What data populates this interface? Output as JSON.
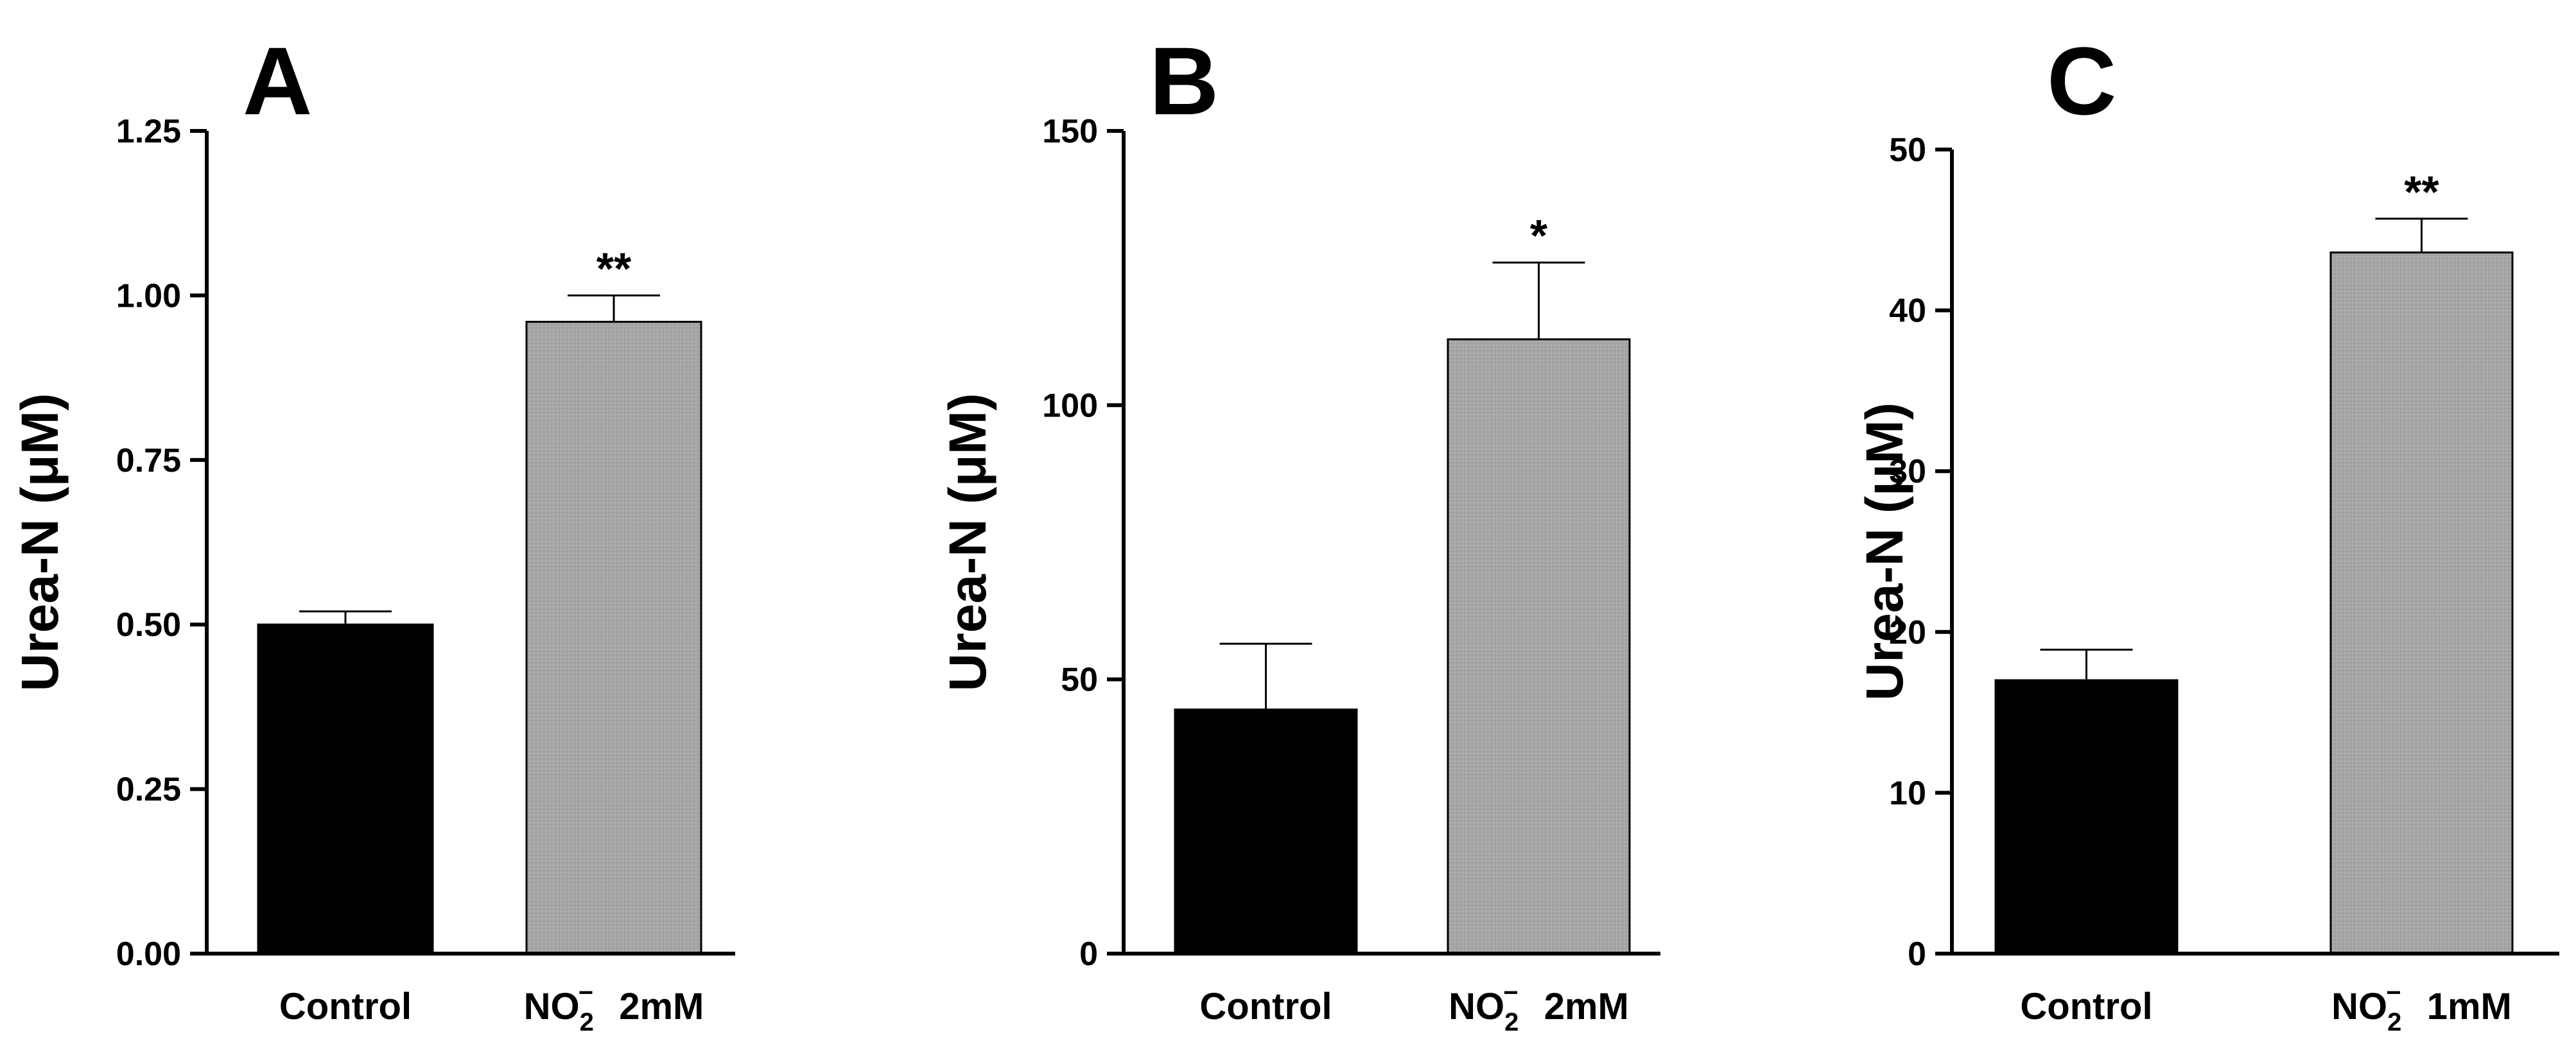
{
  "chart_data": [
    {
      "panel": "A",
      "type": "bar",
      "ylabel": "Urea-N (μM)",
      "ylim": [
        0,
        1.25
      ],
      "yticks": [
        "0.00",
        "0.25",
        "0.50",
        "0.75",
        "1.00",
        "1.25"
      ],
      "ytick_values": [
        0,
        0.25,
        0.5,
        0.75,
        1.0,
        1.25
      ],
      "categories": [
        {
          "pre": "Control",
          "sub": "",
          "sup": "",
          "post": ""
        },
        {
          "pre": "NO",
          "sub": "2",
          "sup": "−",
          "post": "2mM"
        }
      ],
      "values": [
        0.5,
        0.96
      ],
      "errors": [
        0.02,
        0.04
      ],
      "significance": [
        "",
        "**"
      ],
      "bar_colors": [
        "#000000",
        "#a6a6a8"
      ]
    },
    {
      "panel": "B",
      "type": "bar",
      "ylabel": "Urea-N (μM)",
      "ylim": [
        0,
        150
      ],
      "yticks": [
        "0",
        "50",
        "100",
        "150"
      ],
      "ytick_values": [
        0,
        50,
        100,
        150
      ],
      "categories": [
        {
          "pre": "Control",
          "sub": "",
          "sup": "",
          "post": ""
        },
        {
          "pre": "NO",
          "sub": "2",
          "sup": "−",
          "post": "2mM"
        }
      ],
      "values": [
        44.5,
        112
      ],
      "errors": [
        12,
        14
      ],
      "significance": [
        "",
        "*"
      ],
      "bar_colors": [
        "#000000",
        "#a6a6a8"
      ]
    },
    {
      "panel": "C",
      "type": "bar",
      "ylabel": "Urea-N (μM)",
      "ylim": [
        0,
        50
      ],
      "yticks": [
        "0",
        "10",
        "20",
        "30",
        "40",
        "50"
      ],
      "ytick_values": [
        0,
        10,
        20,
        30,
        40,
        50
      ],
      "categories": [
        {
          "pre": "Control",
          "sub": "",
          "sup": "",
          "post": ""
        },
        {
          "pre": "NO",
          "sub": "2",
          "sup": "−",
          "post": "1mM"
        }
      ],
      "values": [
        17,
        43.6
      ],
      "errors": [
        1.9,
        2.1
      ],
      "significance": [
        "",
        "**"
      ],
      "bar_colors": [
        "#000000",
        "#a6a6a8"
      ]
    }
  ]
}
